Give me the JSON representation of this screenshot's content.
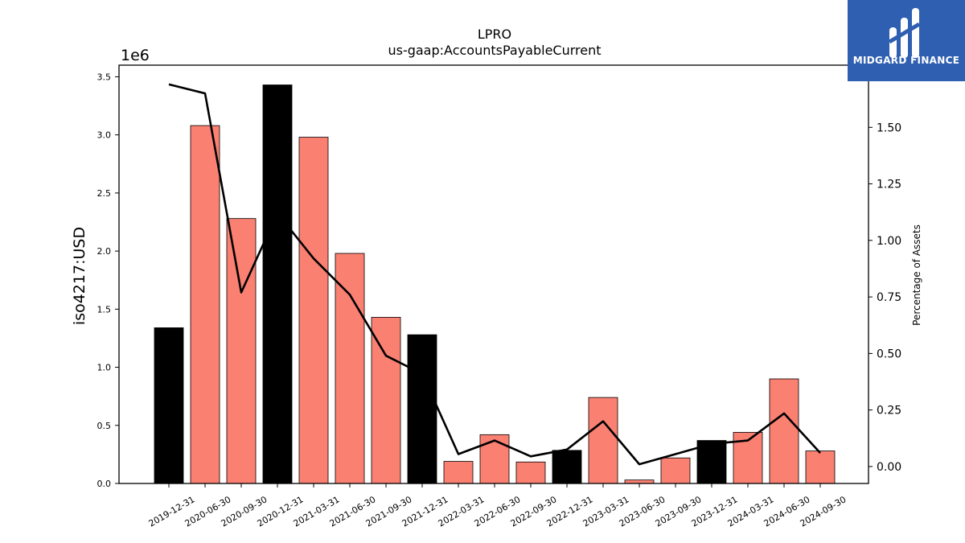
{
  "chart_data": {
    "type": "bar",
    "title": "LPRO",
    "subtitle": "us-gaap:AccountsPayableCurrent",
    "ylabel": "iso4217:USD",
    "y_multiplier_label": "1e6",
    "y2label": "Percentage of Assets",
    "categories": [
      "2019-12-31",
      "2020-06-30",
      "2020-09-30",
      "2020-12-31",
      "2021-03-31",
      "2021-06-30",
      "2021-09-30",
      "2021-12-31",
      "2022-03-31",
      "2022-06-30",
      "2022-09-30",
      "2022-12-31",
      "2023-03-31",
      "2023-06-30",
      "2023-09-30",
      "2023-12-31",
      "2024-03-31",
      "2024-06-30",
      "2024-09-30"
    ],
    "series": [
      {
        "type": "bar",
        "axis": "left",
        "values": [
          1340000,
          3080000,
          2280000,
          3430000,
          2980000,
          1980000,
          1430000,
          1280000,
          190000,
          420000,
          185000,
          285000,
          740000,
          30000,
          220000,
          370000,
          440000,
          900000,
          280000
        ],
        "bar_kinds": [
          "annual",
          "quarterly",
          "quarterly",
          "annual",
          "quarterly",
          "quarterly",
          "quarterly",
          "annual",
          "quarterly",
          "quarterly",
          "quarterly",
          "annual",
          "quarterly",
          "quarterly",
          "quarterly",
          "annual",
          "quarterly",
          "quarterly",
          "quarterly"
        ]
      },
      {
        "type": "line",
        "axis": "right",
        "values": [
          1.69,
          1.65,
          0.77,
          1.12,
          0.92,
          0.76,
          0.49,
          0.41,
          0.055,
          0.115,
          0.045,
          0.075,
          0.2,
          0.01,
          0.055,
          0.1,
          0.115,
          0.235,
          0.06
        ]
      }
    ],
    "ylim": [
      0,
      3.6
    ],
    "y_ticks": [
      "0.0",
      "0.5",
      "1.0",
      "1.5",
      "2.0",
      "2.5",
      "3.0",
      "3.5"
    ],
    "y2lim": [
      -0.075,
      1.775
    ],
    "y2_ticks": [
      "0.00",
      "0.25",
      "0.50",
      "0.75",
      "1.00",
      "1.25",
      "1.50"
    ],
    "colors": {
      "annual": "#000000",
      "quarterly": "#fa8072",
      "line": "#000000",
      "bar_edge": "#000000"
    },
    "grid": false,
    "legend": "none"
  },
  "logo": {
    "text": "MIDGARD FINANCE",
    "background": "#2f5fb0"
  }
}
